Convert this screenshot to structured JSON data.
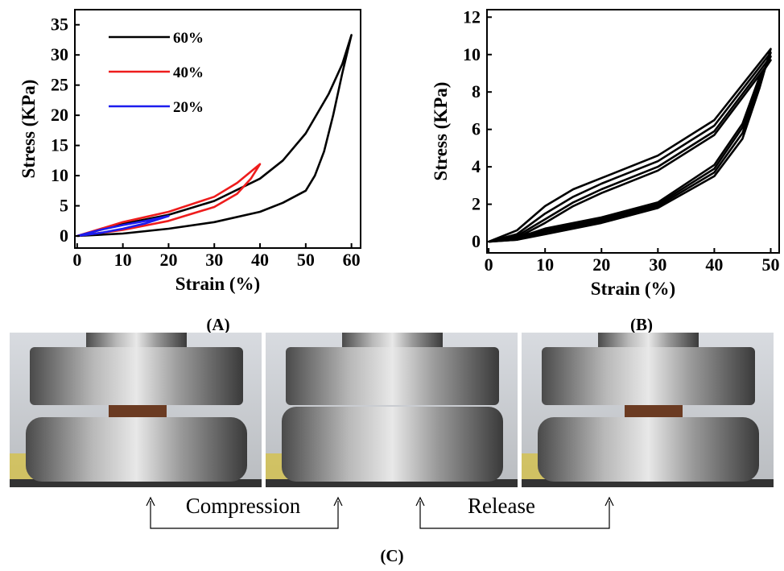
{
  "chart_data": [
    {
      "type": "line",
      "caption": "(A)",
      "xlabel": "Strain (%)",
      "ylabel": "Stress (KPa)",
      "xlim": [
        -0.5,
        62
      ],
      "ylim": [
        -2,
        37.5
      ],
      "xticks": [
        0,
        10,
        20,
        30,
        40,
        50,
        60
      ],
      "yticks": [
        0,
        5,
        10,
        15,
        20,
        25,
        30,
        35
      ],
      "legend": "upper left",
      "series": [
        {
          "name": "60%",
          "color": "#000000",
          "x": [
            0,
            10,
            20,
            30,
            40,
            45,
            50,
            55,
            58,
            60,
            58,
            56,
            54,
            52,
            50,
            45,
            40,
            30,
            20,
            10,
            0
          ],
          "values": [
            0,
            2,
            3.5,
            5.8,
            9.5,
            12.5,
            17,
            23.5,
            28.5,
            33.3,
            27,
            20,
            14,
            10,
            7.5,
            5.5,
            4,
            2.3,
            1.2,
            0.4,
            0
          ]
        },
        {
          "name": "40%",
          "color": "#ee1c1c",
          "x": [
            0,
            10,
            20,
            30,
            35,
            40,
            38,
            35,
            30,
            20,
            10,
            0
          ],
          "values": [
            0,
            2.3,
            4,
            6.5,
            8.8,
            11.9,
            9.5,
            7,
            4.8,
            2.5,
            1,
            0
          ]
        },
        {
          "name": "20%",
          "color": "#1c1cee",
          "x": [
            0,
            5,
            10,
            15,
            20,
            15,
            10,
            5,
            0
          ],
          "values": [
            0,
            1,
            1.8,
            2.5,
            3.3,
            2.1,
            1.2,
            0.5,
            0
          ]
        }
      ]
    },
    {
      "type": "line",
      "caption": "(B)",
      "xlabel": "Strain (%)",
      "ylabel": "Stress (KPa)",
      "xlim": [
        -0.3,
        51.5
      ],
      "ylim": [
        -0.6,
        12.4
      ],
      "xticks": [
        0,
        10,
        20,
        30,
        40,
        50
      ],
      "yticks": [
        0,
        2,
        4,
        6,
        8,
        10,
        12
      ],
      "series": [
        {
          "color": "#000000",
          "x": [
            0,
            5,
            10,
            15,
            20,
            30,
            40,
            50,
            48,
            45,
            40,
            30,
            20,
            10,
            5,
            0
          ],
          "values": [
            0,
            0.6,
            1.9,
            2.8,
            3.4,
            4.6,
            6.5,
            10.3,
            8.2,
            5.5,
            3.5,
            1.8,
            1.0,
            0.4,
            0.1,
            0
          ]
        },
        {
          "color": "#000000",
          "x": [
            0,
            5,
            10,
            15,
            20,
            30,
            40,
            50,
            48,
            45,
            40,
            30,
            20,
            10,
            5,
            0
          ],
          "values": [
            0,
            0.4,
            1.5,
            2.4,
            3.1,
            4.3,
            6.2,
            10.1,
            8.4,
            5.8,
            3.7,
            1.9,
            1.1,
            0.5,
            0.1,
            0
          ]
        },
        {
          "color": "#000000",
          "x": [
            0,
            5,
            10,
            15,
            20,
            30,
            40,
            50,
            48,
            45,
            40,
            30,
            20,
            10,
            5,
            0
          ],
          "values": [
            0,
            0.3,
            1.2,
            2.1,
            2.8,
            4.0,
            5.9,
            9.9,
            8.6,
            6.1,
            3.9,
            2.0,
            1.2,
            0.6,
            0.2,
            0
          ]
        },
        {
          "color": "#000000",
          "x": [
            0,
            5,
            10,
            15,
            20,
            30,
            40,
            50,
            48,
            45,
            40,
            30,
            20,
            10,
            5,
            0
          ],
          "values": [
            0,
            0.2,
            1.0,
            1.9,
            2.6,
            3.8,
            5.7,
            9.7,
            8.8,
            6.3,
            4.1,
            2.1,
            1.3,
            0.7,
            0.2,
            0
          ]
        }
      ]
    }
  ],
  "photo_panel": {
    "caption": "(C)",
    "labels": [
      "Compression",
      "Release"
    ]
  }
}
